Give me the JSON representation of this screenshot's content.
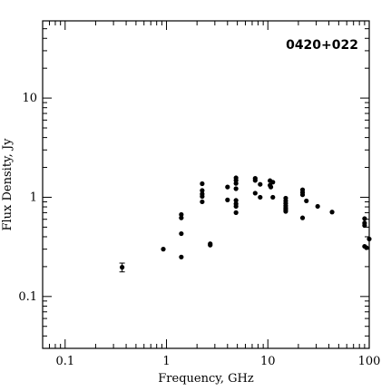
{
  "chart_data": {
    "type": "scatter",
    "title": "0420+022",
    "xlabel": "Frequency, GHz",
    "ylabel": "Flux Density, Jy",
    "xscale": "log",
    "yscale": "log",
    "xlim": [
      0.06,
      100
    ],
    "ylim": [
      0.03,
      60
    ],
    "x_ticks": [
      {
        "value": 0.1,
        "label": "0.1"
      },
      {
        "value": 1,
        "label": "1"
      },
      {
        "value": 10,
        "label": "10"
      },
      {
        "value": 100,
        "label": "100"
      }
    ],
    "y_ticks": [
      {
        "value": 0.1,
        "label": "0.1"
      },
      {
        "value": 1,
        "label": "1"
      },
      {
        "value": 10,
        "label": "10"
      }
    ],
    "title_position": "top-right",
    "grid": false,
    "series": [
      {
        "points": [
          {
            "x": 0.365,
            "y": 0.197,
            "yerr": 0.02
          },
          {
            "x": 0.93,
            "y": 0.3
          },
          {
            "x": 1.4,
            "y": 0.67
          },
          {
            "x": 1.4,
            "y": 0.62
          },
          {
            "x": 1.4,
            "y": 0.43
          },
          {
            "x": 1.4,
            "y": 0.25
          },
          {
            "x": 2.25,
            "y": 1.37
          },
          {
            "x": 2.25,
            "y": 1.17
          },
          {
            "x": 2.25,
            "y": 1.08
          },
          {
            "x": 2.25,
            "y": 1.02
          },
          {
            "x": 2.25,
            "y": 0.9
          },
          {
            "x": 2.7,
            "y": 0.34
          },
          {
            "x": 2.7,
            "y": 0.33
          },
          {
            "x": 4.0,
            "y": 1.27
          },
          {
            "x": 4.0,
            "y": 0.94
          },
          {
            "x": 4.85,
            "y": 1.57
          },
          {
            "x": 4.85,
            "y": 1.48
          },
          {
            "x": 4.85,
            "y": 1.38
          },
          {
            "x": 4.85,
            "y": 1.22
          },
          {
            "x": 4.85,
            "y": 0.93
          },
          {
            "x": 4.85,
            "y": 0.86
          },
          {
            "x": 4.85,
            "y": 0.81
          },
          {
            "x": 4.85,
            "y": 0.7
          },
          {
            "x": 7.5,
            "y": 1.55
          },
          {
            "x": 7.5,
            "y": 1.48
          },
          {
            "x": 7.5,
            "y": 1.1
          },
          {
            "x": 8.4,
            "y": 1.35
          },
          {
            "x": 8.4,
            "y": 1.0
          },
          {
            "x": 10.5,
            "y": 1.47
          },
          {
            "x": 10.5,
            "y": 1.32
          },
          {
            "x": 10.7,
            "y": 1.27
          },
          {
            "x": 11.2,
            "y": 1.42
          },
          {
            "x": 11.2,
            "y": 1.0
          },
          {
            "x": 15,
            "y": 0.98
          },
          {
            "x": 15,
            "y": 0.92
          },
          {
            "x": 15,
            "y": 0.87
          },
          {
            "x": 15,
            "y": 0.82
          },
          {
            "x": 15,
            "y": 0.78
          },
          {
            "x": 15,
            "y": 0.75
          },
          {
            "x": 15,
            "y": 0.72
          },
          {
            "x": 22,
            "y": 1.19
          },
          {
            "x": 22,
            "y": 1.12
          },
          {
            "x": 22,
            "y": 1.06
          },
          {
            "x": 22,
            "y": 0.62
          },
          {
            "x": 24,
            "y": 0.92
          },
          {
            "x": 31,
            "y": 0.81
          },
          {
            "x": 43,
            "y": 0.71
          },
          {
            "x": 90,
            "y": 0.61
          },
          {
            "x": 90,
            "y": 0.55
          },
          {
            "x": 90,
            "y": 0.52
          },
          {
            "x": 90,
            "y": 0.32
          },
          {
            "x": 94,
            "y": 0.31
          },
          {
            "x": 100,
            "y": 0.38
          }
        ]
      }
    ]
  }
}
